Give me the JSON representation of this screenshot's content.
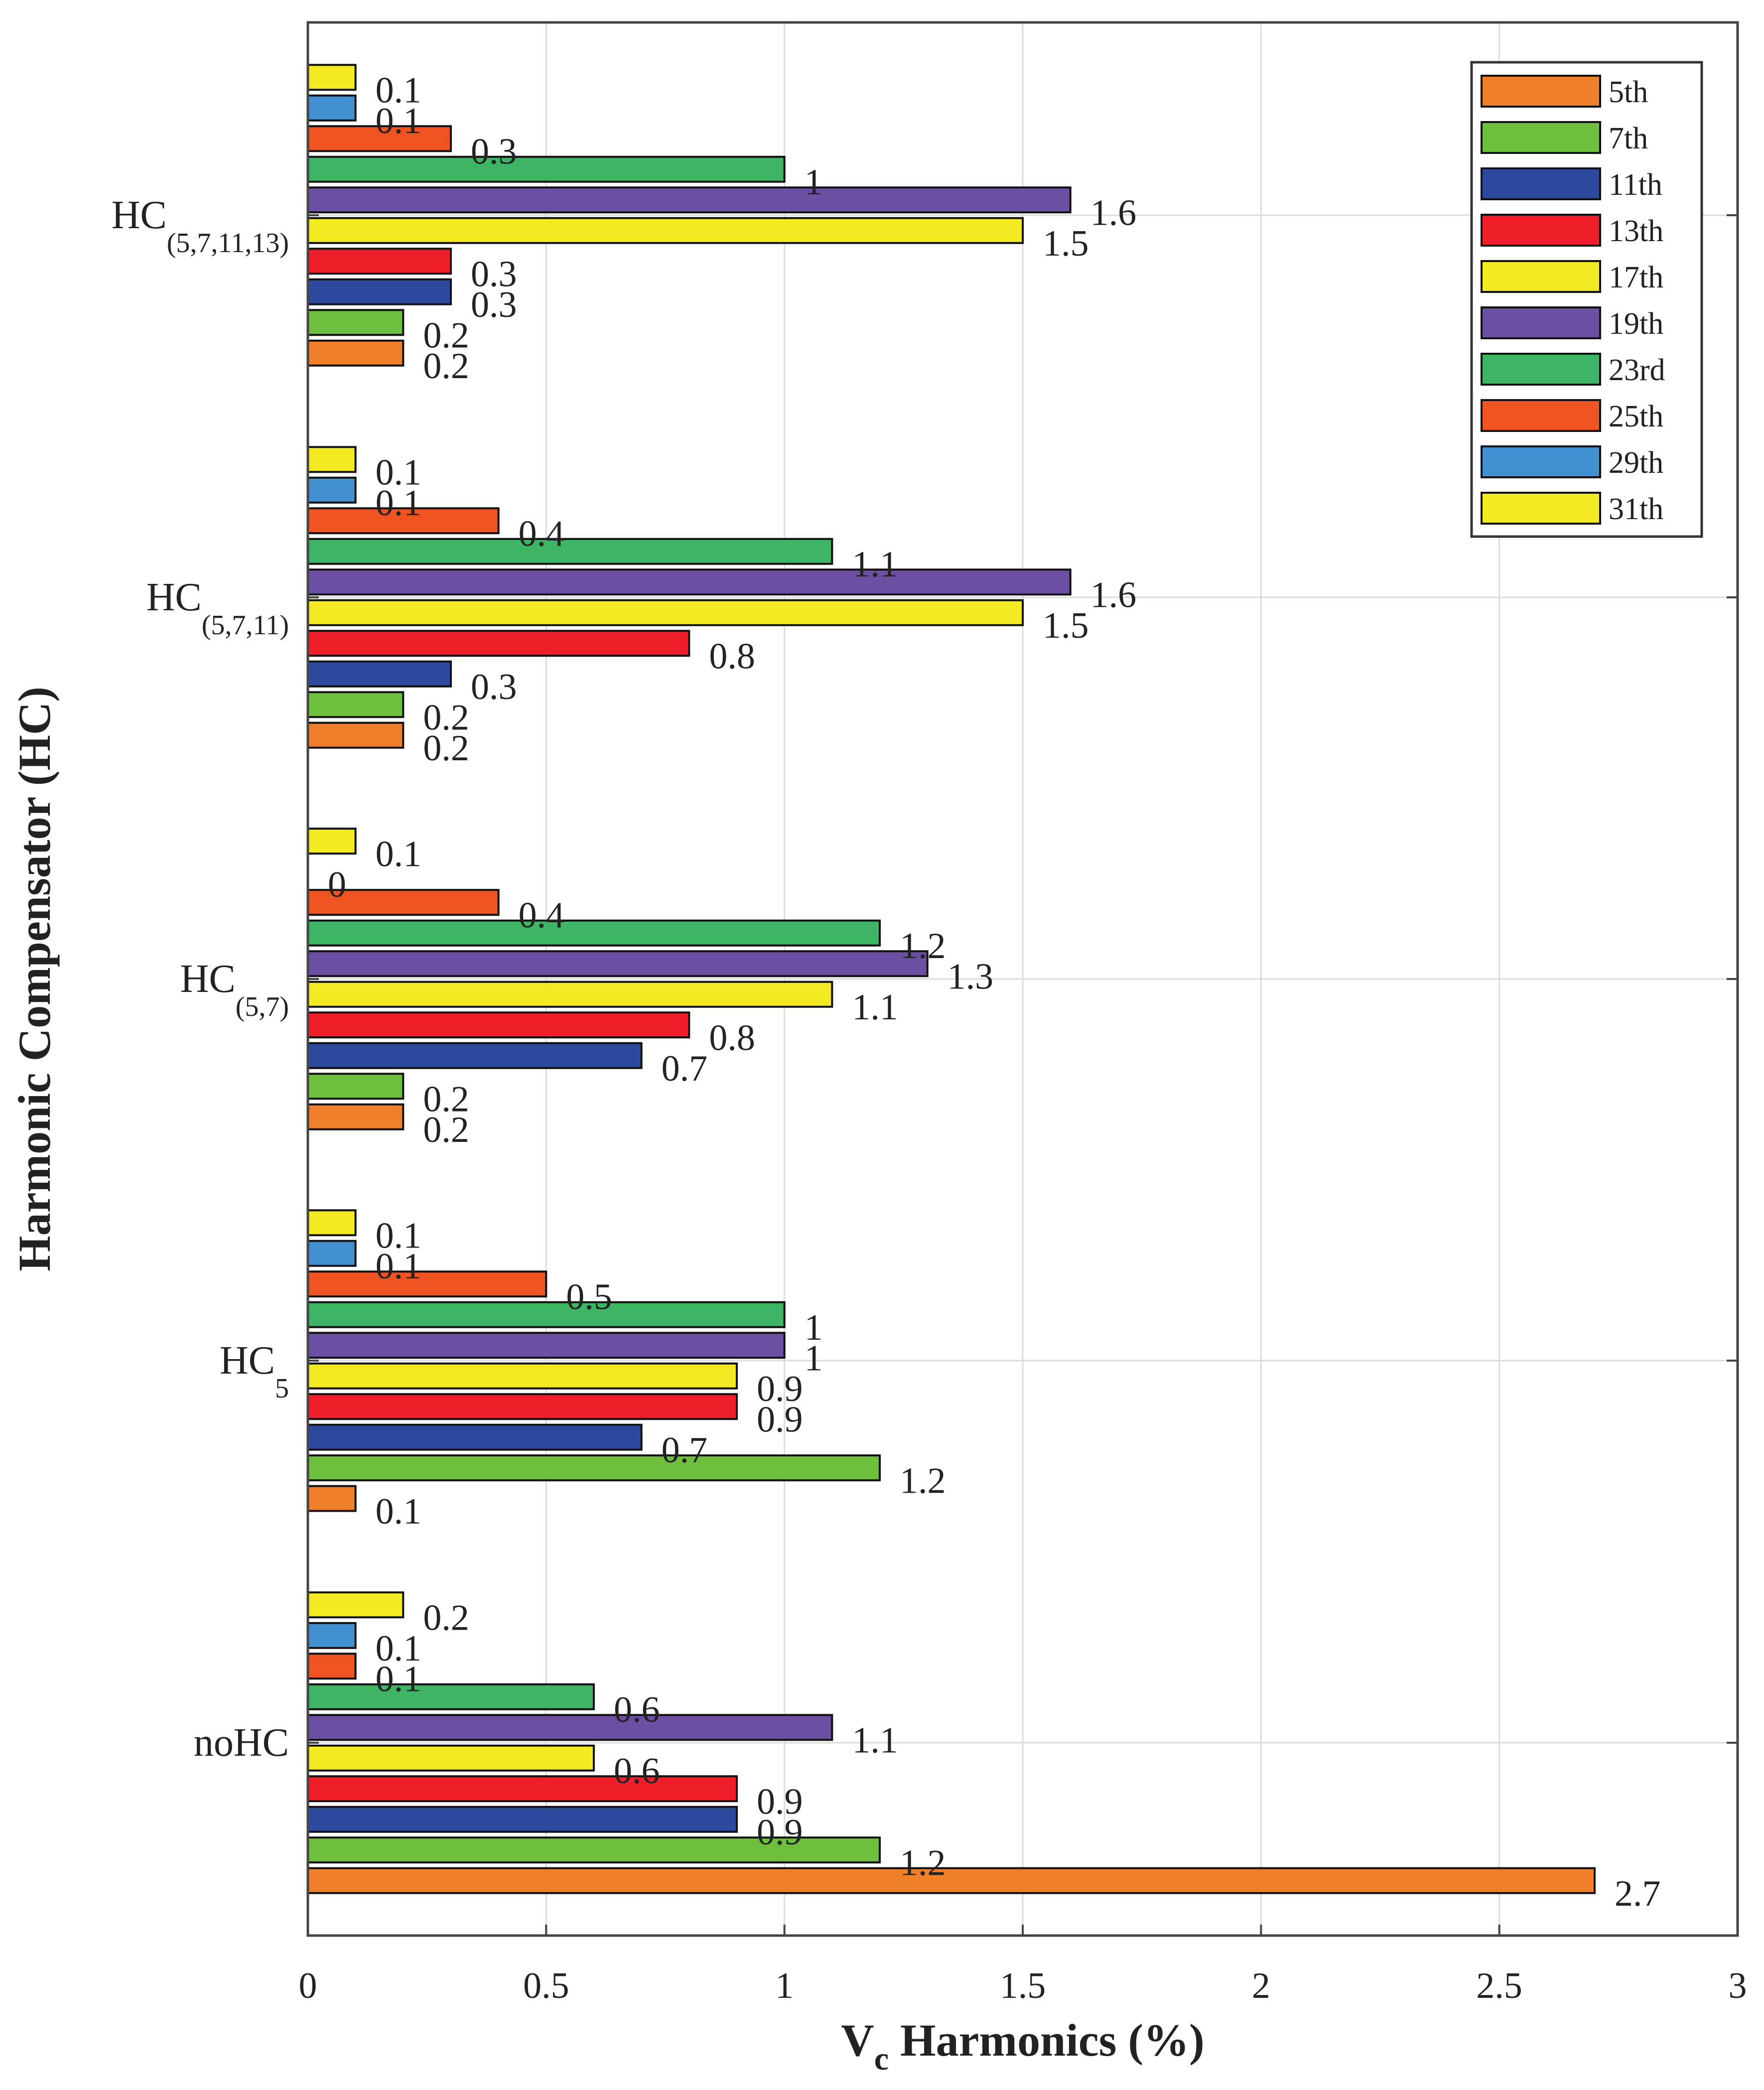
{
  "chart_data": {
    "type": "bar",
    "orientation": "horizontal",
    "categories": [
      {
        "main": "noHC",
        "sub": ""
      },
      {
        "main": "HC",
        "sub": "5"
      },
      {
        "main": "HC",
        "sub": "(5,7)"
      },
      {
        "main": "HC",
        "sub": "(5,7,11)"
      },
      {
        "main": "HC",
        "sub": "(5,7,11,13)"
      }
    ],
    "series": [
      {
        "name": "5th",
        "color": "#f07f2a",
        "values": [
          2.7,
          0.1,
          0.2,
          0.2,
          0.2
        ]
      },
      {
        "name": "7th",
        "color": "#6fbf3f",
        "values": [
          1.2,
          1.2,
          0.2,
          0.2,
          0.2
        ]
      },
      {
        "name": "11th",
        "color": "#2e4aa0",
        "values": [
          0.9,
          0.7,
          0.7,
          0.3,
          0.3
        ]
      },
      {
        "name": "13th",
        "color": "#ee1f2a",
        "values": [
          0.9,
          0.9,
          0.8,
          0.8,
          0.3
        ]
      },
      {
        "name": "17th",
        "color": "#f3ea22",
        "values": [
          0.6,
          0.9,
          1.1,
          1.5,
          1.5
        ]
      },
      {
        "name": "19th",
        "color": "#6a4fa3",
        "values": [
          1.1,
          1,
          1.3,
          1.6,
          1.6
        ]
      },
      {
        "name": "23rd",
        "color": "#3db565",
        "values": [
          0.6,
          1,
          1.2,
          1.1,
          1
        ]
      },
      {
        "name": "25th",
        "color": "#ef5322",
        "values": [
          0.1,
          0.5,
          0.4,
          0.4,
          0.3
        ]
      },
      {
        "name": "29th",
        "color": "#4390d0",
        "values": [
          0.1,
          0.1,
          0,
          0.1,
          0.1
        ]
      },
      {
        "name": "31th",
        "color": "#f3ea22",
        "values": [
          0.2,
          0.1,
          0.1,
          0.1,
          0.1
        ]
      }
    ],
    "xlim": [
      0,
      3
    ],
    "xticks": [
      0,
      0.5,
      1,
      1.5,
      2,
      2.5,
      3
    ],
    "xtick_labels": [
      "0",
      "0.5",
      "1",
      "1.5",
      "2",
      "2.5",
      "3"
    ],
    "xlabel": {
      "main": "V",
      "sub": "c",
      "rest": " Harmonics (%)"
    },
    "ylabel": "Harmonic Compensator (HC)",
    "grid": true,
    "legend_position": "top-right"
  }
}
